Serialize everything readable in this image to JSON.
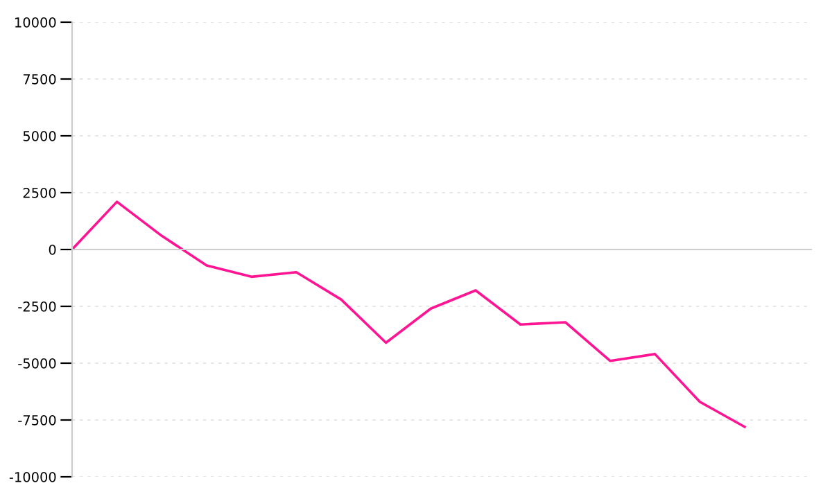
{
  "chart_data": {
    "type": "line",
    "categories": [
      null,
      null,
      null,
      null,
      null,
      null,
      null,
      null,
      null,
      null,
      null,
      null,
      null,
      null,
      null,
      null
    ],
    "series": [
      {
        "color": "#ff1493",
        "values": [
          0,
          2100,
          600,
          -700,
          -1200,
          -1000,
          -2200,
          -4100,
          -2600,
          -1800,
          -3300,
          -3200,
          -4900,
          -4600,
          -6700,
          -7800
        ]
      }
    ],
    "ylim": [
      -10000,
      10000
    ],
    "yticks": [
      -10000,
      -7500,
      -5000,
      -2500,
      0,
      2500,
      5000,
      7500,
      10000
    ],
    "grid": "y",
    "marker": "none",
    "line_style": "solid",
    "legend": false
  }
}
